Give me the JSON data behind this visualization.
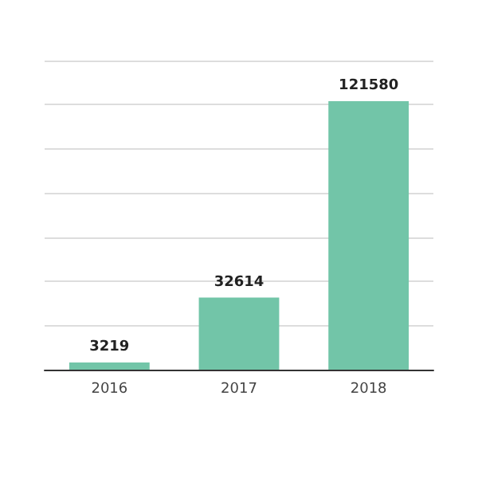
{
  "chart_data": {
    "type": "bar",
    "categories": [
      "2016",
      "2017",
      "2018"
    ],
    "values": [
      3219,
      32614,
      121580
    ],
    "color": "#72c5a8",
    "grid": "y",
    "tick_labels": "x",
    "data_labels": true
  }
}
